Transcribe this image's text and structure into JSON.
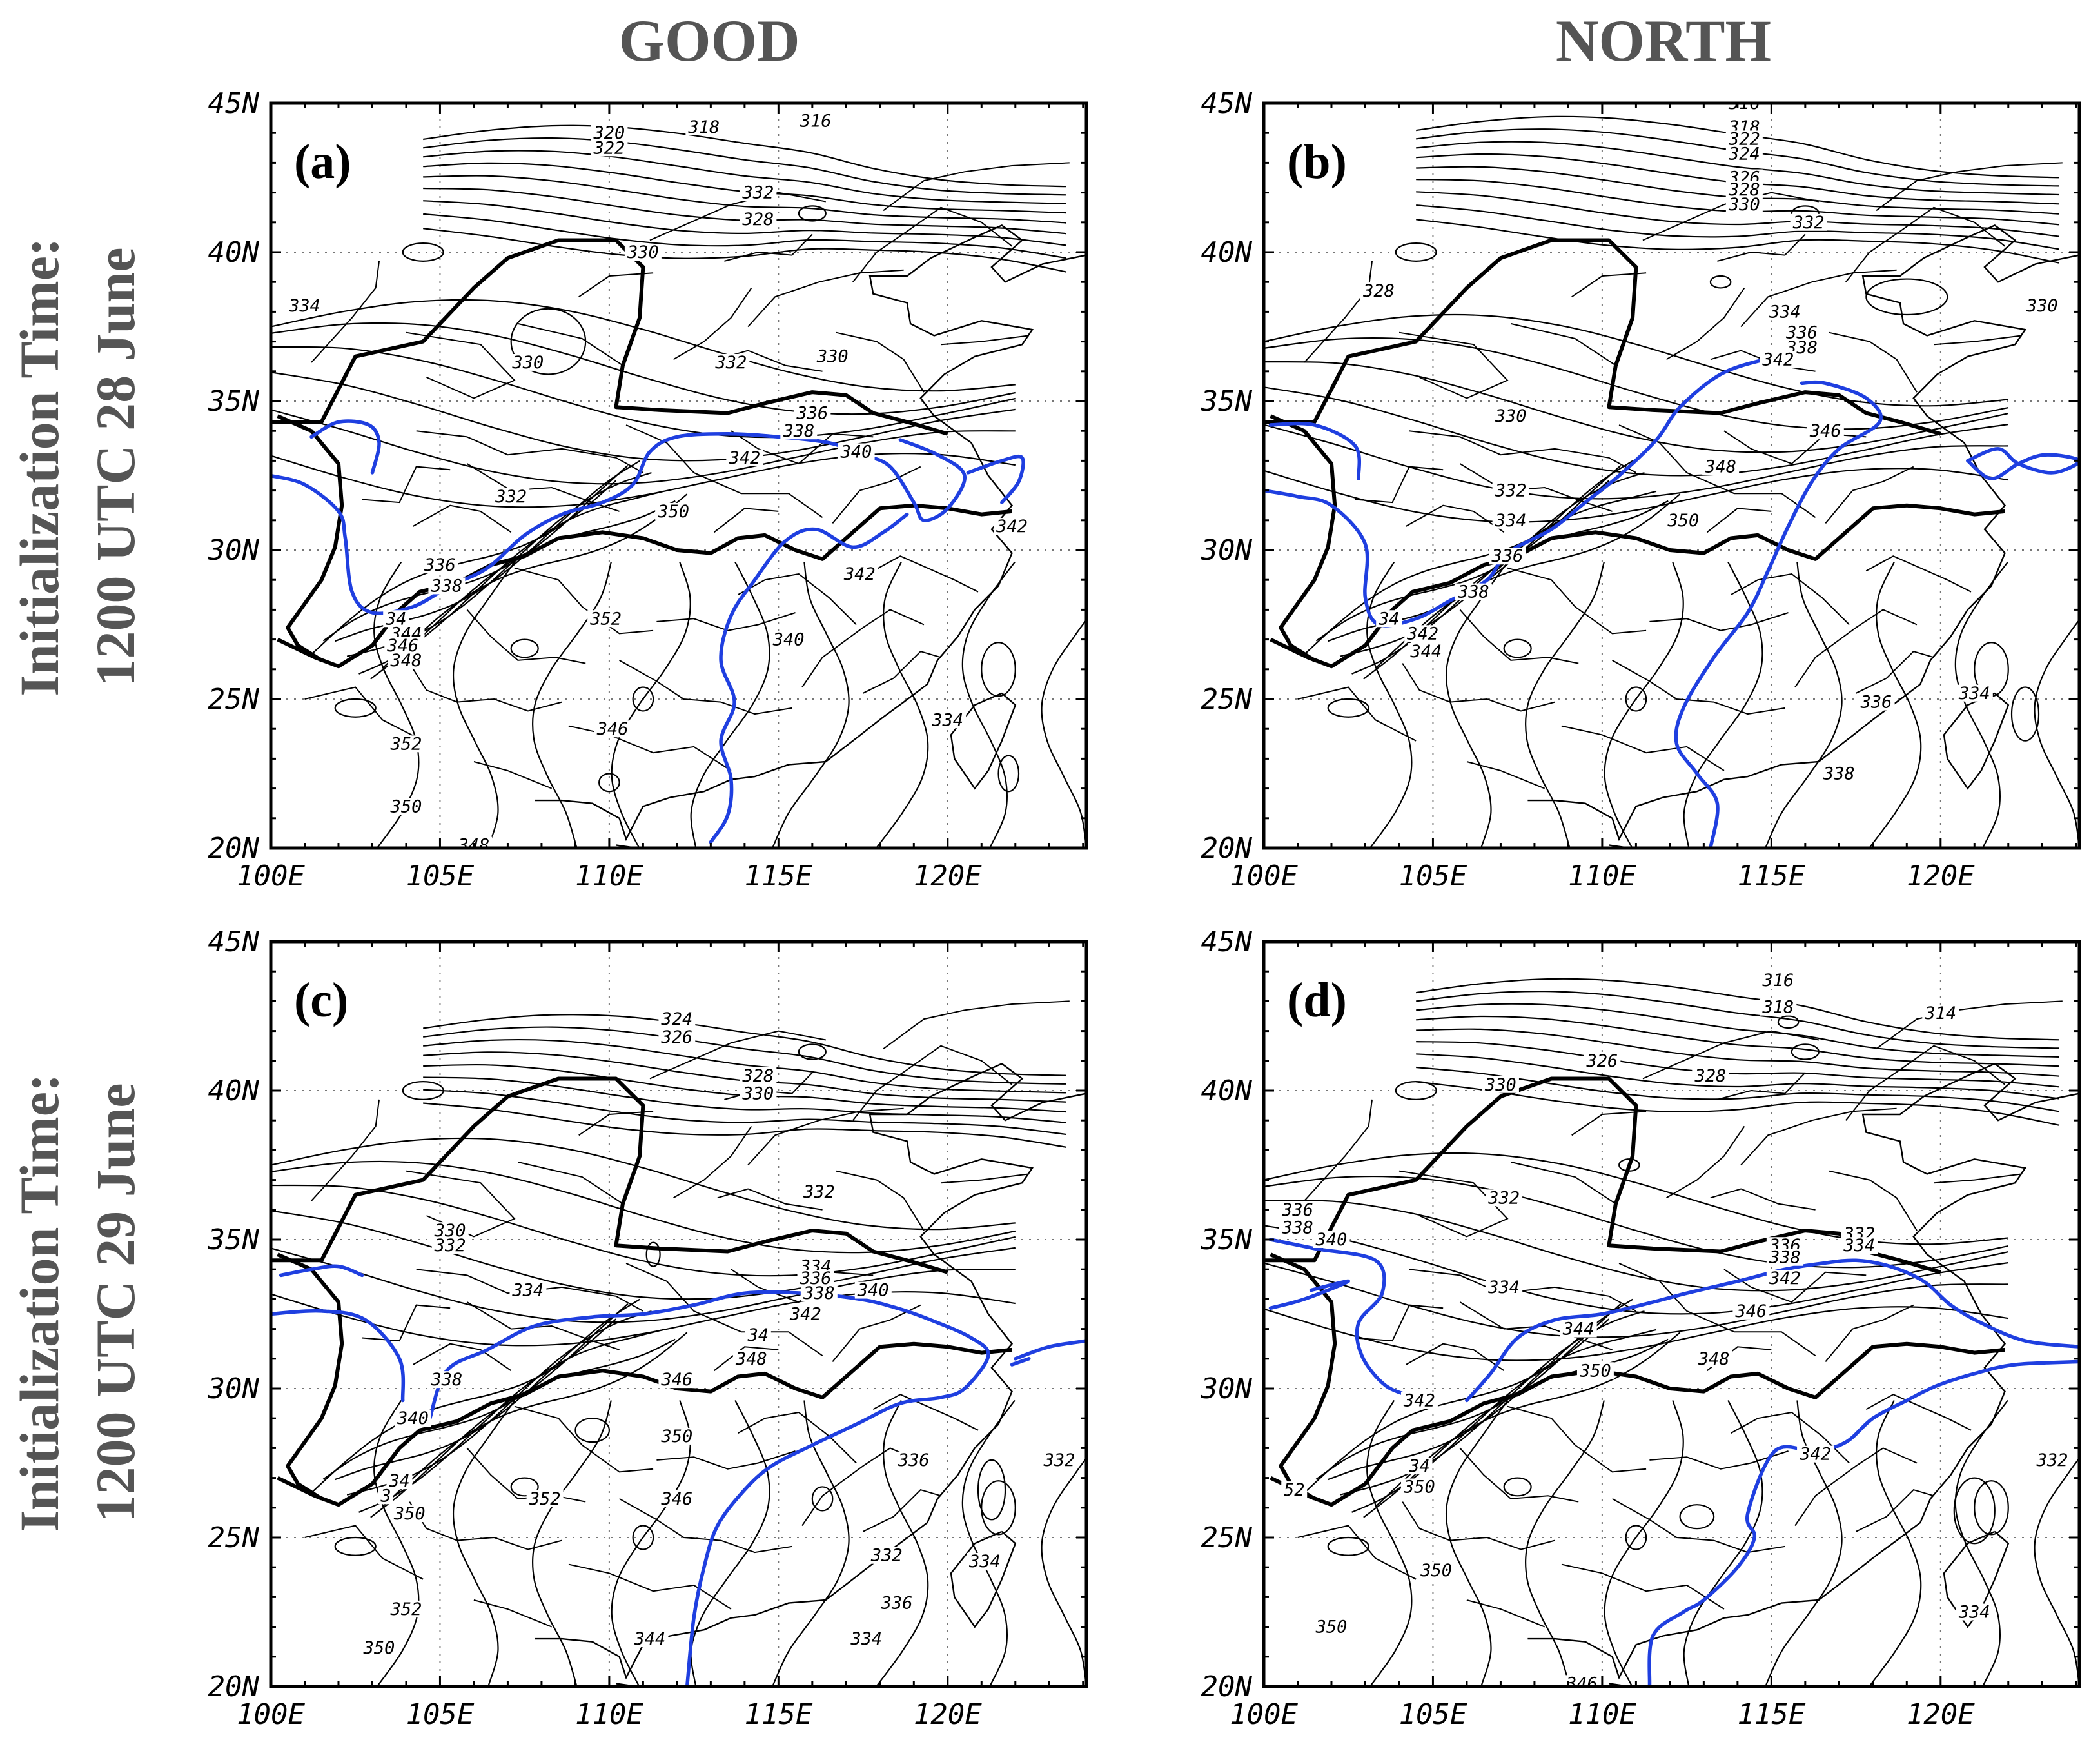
{
  "column_titles": [
    "GOOD",
    "NORTH"
  ],
  "row_titles": [
    {
      "line1": "Initialization Time:",
      "line2": "1200 UTC 28 June"
    },
    {
      "line1": "Initialization Time:",
      "line2": "1200 UTC 29 June"
    }
  ],
  "axes": {
    "lat_labels": [
      "45N",
      "40N",
      "35N",
      "30N",
      "25N",
      "20N"
    ],
    "lon_labels": [
      "100E",
      "105E",
      "110E",
      "115E",
      "120E"
    ]
  },
  "colors": {
    "contour": "#000000",
    "highlight_contour": "#1f3fe0",
    "title_gray": "#555555"
  },
  "panels": [
    {
      "id": "a",
      "tag": "(a)",
      "labels": [
        {
          "t": "320",
          "lon": 110.0,
          "lat": 44.0
        },
        {
          "t": "318",
          "lon": 112.8,
          "lat": 44.2
        },
        {
          "t": "316",
          "lon": 116.1,
          "lat": 44.4
        },
        {
          "t": "322",
          "lon": 110.0,
          "lat": 43.5
        },
        {
          "t": "332",
          "lon": 114.4,
          "lat": 42.0
        },
        {
          "t": "328",
          "lon": 114.4,
          "lat": 41.1
        },
        {
          "t": "330",
          "lon": 111.0,
          "lat": 40.0
        },
        {
          "t": "334",
          "lon": 101.0,
          "lat": 38.2
        },
        {
          "t": "330",
          "lon": 107.6,
          "lat": 36.3
        },
        {
          "t": "332",
          "lon": 113.6,
          "lat": 36.3
        },
        {
          "t": "330",
          "lon": 116.6,
          "lat": 36.5
        },
        {
          "t": "336",
          "lon": 116.0,
          "lat": 34.6
        },
        {
          "t": "338",
          "lon": 115.6,
          "lat": 34.0
        },
        {
          "t": "340",
          "lon": 117.3,
          "lat": 33.3
        },
        {
          "t": "342",
          "lon": 114.0,
          "lat": 33.1
        },
        {
          "t": "332",
          "lon": 107.1,
          "lat": 31.8
        },
        {
          "t": "350",
          "lon": 111.9,
          "lat": 31.3
        },
        {
          "t": "336",
          "lon": 105.0,
          "lat": 29.5
        },
        {
          "t": "338",
          "lon": 105.2,
          "lat": 28.8
        },
        {
          "t": "34",
          "lon": 103.7,
          "lat": 27.7
        },
        {
          "t": "344",
          "lon": 104.0,
          "lat": 27.2
        },
        {
          "t": "346",
          "lon": 103.9,
          "lat": 26.8
        },
        {
          "t": "348",
          "lon": 104.0,
          "lat": 26.3
        },
        {
          "t": "352",
          "lon": 109.9,
          "lat": 27.7
        },
        {
          "t": "340",
          "lon": 115.3,
          "lat": 27.0
        },
        {
          "t": "342",
          "lon": 117.4,
          "lat": 29.2
        },
        {
          "t": "342",
          "lon": 121.9,
          "lat": 30.8
        },
        {
          "t": "346",
          "lon": 110.1,
          "lat": 24.0
        },
        {
          "t": "334",
          "lon": 120.0,
          "lat": 24.3
        },
        {
          "t": "352",
          "lon": 104.0,
          "lat": 23.5
        },
        {
          "t": "350",
          "lon": 104.0,
          "lat": 21.4
        },
        {
          "t": "348",
          "lon": 106.0,
          "lat": 20.1
        }
      ]
    },
    {
      "id": "b",
      "tag": "(b)",
      "labels": [
        {
          "t": "316",
          "lon": 114.2,
          "lat": 45.0
        },
        {
          "t": "318",
          "lon": 114.2,
          "lat": 44.2
        },
        {
          "t": "322",
          "lon": 114.2,
          "lat": 43.8
        },
        {
          "t": "324",
          "lon": 114.2,
          "lat": 43.3
        },
        {
          "t": "326",
          "lon": 114.2,
          "lat": 42.5
        },
        {
          "t": "328",
          "lon": 114.2,
          "lat": 42.1
        },
        {
          "t": "330",
          "lon": 114.2,
          "lat": 41.6
        },
        {
          "t": "332",
          "lon": 116.1,
          "lat": 41.0
        },
        {
          "t": "330",
          "lon": 123.0,
          "lat": 38.2
        },
        {
          "t": "328",
          "lon": 103.4,
          "lat": 38.7
        },
        {
          "t": "334",
          "lon": 115.4,
          "lat": 38.0
        },
        {
          "t": "336",
          "lon": 115.9,
          "lat": 37.3
        },
        {
          "t": "338",
          "lon": 115.9,
          "lat": 36.8
        },
        {
          "t": "342",
          "lon": 115.2,
          "lat": 36.4
        },
        {
          "t": "330",
          "lon": 107.3,
          "lat": 34.5
        },
        {
          "t": "346",
          "lon": 116.6,
          "lat": 34.0
        },
        {
          "t": "348",
          "lon": 113.5,
          "lat": 32.8
        },
        {
          "t": "332",
          "lon": 107.3,
          "lat": 32.0
        },
        {
          "t": "334",
          "lon": 107.3,
          "lat": 31.0
        },
        {
          "t": "350",
          "lon": 112.4,
          "lat": 31.0
        },
        {
          "t": "336",
          "lon": 107.2,
          "lat": 29.8
        },
        {
          "t": "338",
          "lon": 106.2,
          "lat": 28.6
        },
        {
          "t": "34",
          "lon": 103.7,
          "lat": 27.7
        },
        {
          "t": "342",
          "lon": 104.7,
          "lat": 27.2
        },
        {
          "t": "344",
          "lon": 104.8,
          "lat": 26.6
        },
        {
          "t": "336",
          "lon": 118.1,
          "lat": 24.9
        },
        {
          "t": "334",
          "lon": 121.0,
          "lat": 25.2
        },
        {
          "t": "338",
          "lon": 117.0,
          "lat": 22.5
        }
      ]
    },
    {
      "id": "c",
      "tag": "(c)",
      "labels": [
        {
          "t": "324",
          "lon": 112.0,
          "lat": 42.4
        },
        {
          "t": "326",
          "lon": 112.0,
          "lat": 41.8
        },
        {
          "t": "328",
          "lon": 114.4,
          "lat": 40.5
        },
        {
          "t": "330",
          "lon": 114.4,
          "lat": 39.9
        },
        {
          "t": "332",
          "lon": 116.2,
          "lat": 36.6
        },
        {
          "t": "330",
          "lon": 105.3,
          "lat": 35.3
        },
        {
          "t": "332",
          "lon": 105.3,
          "lat": 34.8
        },
        {
          "t": "334",
          "lon": 116.1,
          "lat": 34.1
        },
        {
          "t": "336",
          "lon": 116.1,
          "lat": 33.7
        },
        {
          "t": "338",
          "lon": 116.2,
          "lat": 33.2
        },
        {
          "t": "340",
          "lon": 117.8,
          "lat": 33.3
        },
        {
          "t": "342",
          "lon": 115.8,
          "lat": 32.5
        },
        {
          "t": "334",
          "lon": 107.6,
          "lat": 33.3
        },
        {
          "t": "34",
          "lon": 114.4,
          "lat": 31.8
        },
        {
          "t": "348",
          "lon": 114.2,
          "lat": 31.0
        },
        {
          "t": "346",
          "lon": 112.0,
          "lat": 30.3
        },
        {
          "t": "338",
          "lon": 105.2,
          "lat": 30.3
        },
        {
          "t": "340",
          "lon": 104.2,
          "lat": 29.0
        },
        {
          "t": "350",
          "lon": 112.0,
          "lat": 28.4
        },
        {
          "t": "34",
          "lon": 103.8,
          "lat": 26.9
        },
        {
          "t": "3",
          "lon": 103.4,
          "lat": 26.4
        },
        {
          "t": "350",
          "lon": 104.1,
          "lat": 25.8
        },
        {
          "t": "352",
          "lon": 108.1,
          "lat": 26.3
        },
        {
          "t": "346",
          "lon": 112.0,
          "lat": 26.3
        },
        {
          "t": "336",
          "lon": 119.0,
          "lat": 27.6
        },
        {
          "t": "332",
          "lon": 123.3,
          "lat": 27.6
        },
        {
          "t": "332",
          "lon": 118.2,
          "lat": 24.4
        },
        {
          "t": "334",
          "lon": 121.1,
          "lat": 24.2
        },
        {
          "t": "336",
          "lon": 118.5,
          "lat": 22.8
        },
        {
          "t": "334",
          "lon": 117.6,
          "lat": 21.6
        },
        {
          "t": "344",
          "lon": 111.2,
          "lat": 21.6
        },
        {
          "t": "352",
          "lon": 104.0,
          "lat": 22.6
        },
        {
          "t": "350",
          "lon": 103.2,
          "lat": 21.3
        }
      ]
    },
    {
      "id": "d",
      "tag": "(d)",
      "labels": [
        {
          "t": "316",
          "lon": 115.2,
          "lat": 43.7
        },
        {
          "t": "318",
          "lon": 115.2,
          "lat": 42.8
        },
        {
          "t": "314",
          "lon": 120.0,
          "lat": 42.6
        },
        {
          "t": "326",
          "lon": 110.0,
          "lat": 41.0
        },
        {
          "t": "328",
          "lon": 113.2,
          "lat": 40.5
        },
        {
          "t": "330",
          "lon": 107.0,
          "lat": 40.2
        },
        {
          "t": "332",
          "lon": 107.1,
          "lat": 36.4
        },
        {
          "t": "336",
          "lon": 101.0,
          "lat": 36.0
        },
        {
          "t": "338",
          "lon": 101.0,
          "lat": 35.4
        },
        {
          "t": "340",
          "lon": 102.0,
          "lat": 35.0
        },
        {
          "t": "334",
          "lon": 107.1,
          "lat": 33.4
        },
        {
          "t": "332",
          "lon": 117.6,
          "lat": 35.2
        },
        {
          "t": "334",
          "lon": 117.6,
          "lat": 34.8
        },
        {
          "t": "336",
          "lon": 115.4,
          "lat": 34.8
        },
        {
          "t": "338",
          "lon": 115.4,
          "lat": 34.4
        },
        {
          "t": "342",
          "lon": 115.4,
          "lat": 33.7
        },
        {
          "t": "346",
          "lon": 114.4,
          "lat": 32.6
        },
        {
          "t": "344",
          "lon": 109.3,
          "lat": 32.0
        },
        {
          "t": "348",
          "lon": 113.3,
          "lat": 31.0
        },
        {
          "t": "350",
          "lon": 109.8,
          "lat": 30.6
        },
        {
          "t": "342",
          "lon": 104.6,
          "lat": 29.6
        },
        {
          "t": "342",
          "lon": 116.3,
          "lat": 27.8
        },
        {
          "t": "332",
          "lon": 123.3,
          "lat": 27.6
        },
        {
          "t": "34",
          "lon": 104.6,
          "lat": 27.4
        },
        {
          "t": "350",
          "lon": 104.6,
          "lat": 26.7
        },
        {
          "t": "52",
          "lon": 100.9,
          "lat": 26.6
        },
        {
          "t": "350",
          "lon": 105.1,
          "lat": 23.9
        },
        {
          "t": "350",
          "lon": 102.0,
          "lat": 22.0
        },
        {
          "t": "334",
          "lon": 121.0,
          "lat": 22.5
        },
        {
          "t": "346",
          "lon": 109.4,
          "lat": 20.1
        }
      ]
    }
  ]
}
